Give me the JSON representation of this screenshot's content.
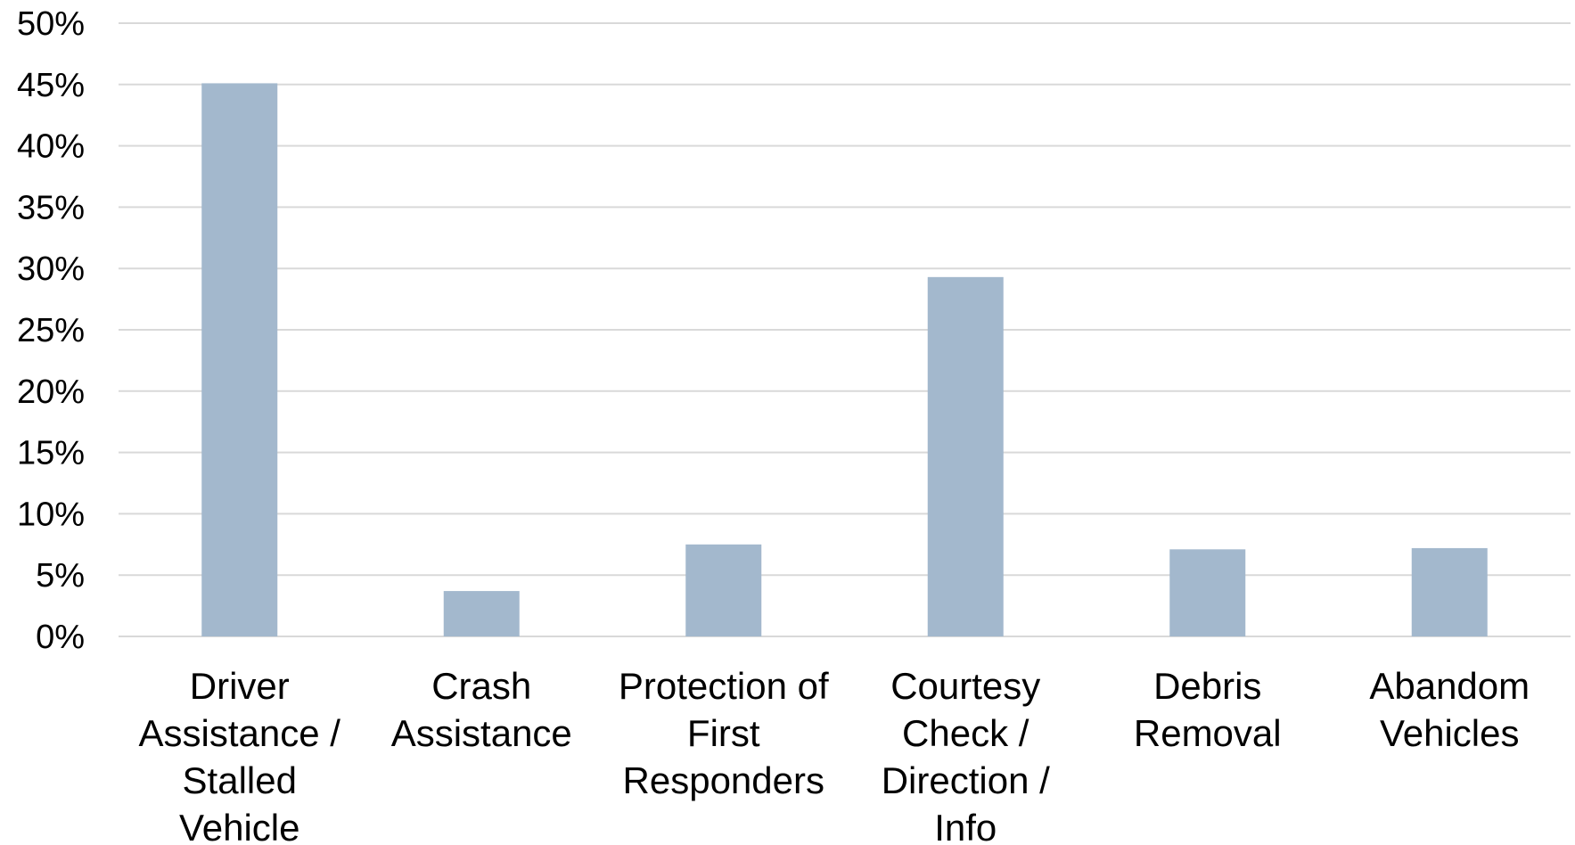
{
  "chart_data": {
    "type": "bar",
    "title": "",
    "xlabel": "",
    "ylabel": "",
    "categories": [
      [
        "Driver",
        "Assistance /",
        "Stalled",
        "Vehicle"
      ],
      [
        "Crash",
        "Assistance"
      ],
      [
        "Protection of",
        "First",
        "Responders"
      ],
      [
        "Courtesy",
        "Check /",
        "Direction /",
        "Info"
      ],
      [
        "Debris",
        "Removal"
      ],
      [
        "Abandom",
        "Vehicles"
      ]
    ],
    "values": [
      45.1,
      3.7,
      7.5,
      29.3,
      7.1,
      7.2
    ],
    "ylim": [
      0,
      50
    ],
    "yticks": [
      0,
      5,
      10,
      15,
      20,
      25,
      30,
      35,
      40,
      45,
      50
    ],
    "ytick_labels": [
      "0%",
      "5%",
      "10%",
      "15%",
      "20%",
      "25%",
      "30%",
      "35%",
      "40%",
      "45%",
      "50%"
    ],
    "grid": true,
    "legend": "none",
    "bar_color": "#a3b8cd",
    "grid_color": "#d9d9d9"
  }
}
